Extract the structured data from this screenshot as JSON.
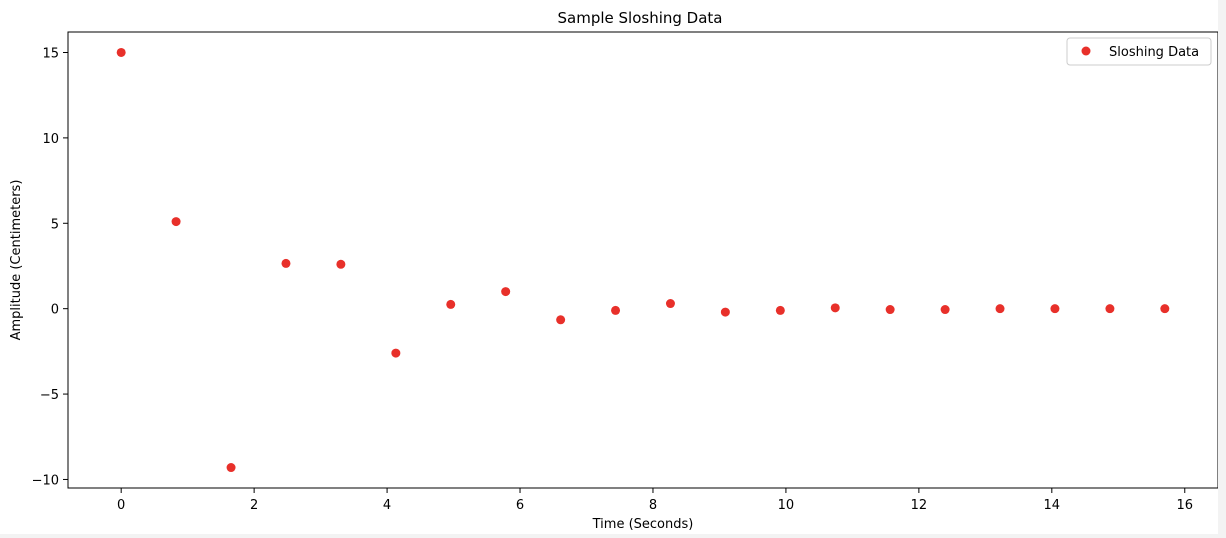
{
  "chart_data": {
    "type": "scatter",
    "title": "Sample Sloshing Data",
    "xlabel": "Time (Seconds)",
    "ylabel": "Amplitude (Centimeters)",
    "xlim": [
      -0.8,
      16.5
    ],
    "ylim": [
      -10.5,
      16.2
    ],
    "xticks": [
      0,
      2,
      4,
      6,
      8,
      10,
      12,
      14,
      16
    ],
    "yticks": [
      -10,
      -5,
      0,
      5,
      10,
      15
    ],
    "ytick_labels": [
      "−10",
      "−5",
      "0",
      "5",
      "10",
      "15"
    ],
    "grid": false,
    "legend_position": "top-right",
    "series": [
      {
        "name": "Sloshing Data",
        "color": "#e8302a",
        "marker": "circle",
        "x": [
          0,
          0.826,
          1.653,
          2.479,
          3.305,
          4.132,
          4.958,
          5.784,
          6.611,
          7.437,
          8.263,
          9.089,
          9.916,
          10.742,
          11.568,
          12.395,
          13.221,
          14.047,
          14.874,
          15.7
        ],
        "y": [
          15.0,
          5.1,
          -9.3,
          2.65,
          2.6,
          -2.6,
          0.25,
          1.0,
          -0.65,
          -0.1,
          0.3,
          -0.2,
          -0.1,
          0.05,
          -0.05,
          -0.05,
          0.0,
          0.0,
          0.0,
          0.0
        ]
      }
    ]
  }
}
